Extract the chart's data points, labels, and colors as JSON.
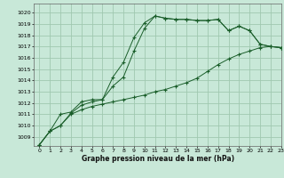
{
  "title": "Graphe pression niveau de la mer (hPa)",
  "background_color": "#c8e8d8",
  "grid_color": "#a0c8b0",
  "line_color": "#1a5e2a",
  "xlim": [
    -0.5,
    23
  ],
  "ylim": [
    1008.2,
    1020.8
  ],
  "yticks": [
    1009,
    1010,
    1011,
    1012,
    1013,
    1014,
    1015,
    1016,
    1017,
    1018,
    1019,
    1020
  ],
  "xticks": [
    0,
    1,
    2,
    3,
    4,
    5,
    6,
    7,
    8,
    9,
    10,
    11,
    12,
    13,
    14,
    15,
    16,
    17,
    18,
    19,
    20,
    21,
    22,
    23
  ],
  "series1_x": [
    0,
    1,
    2,
    3,
    4,
    5,
    6,
    7,
    8,
    9,
    10,
    11,
    12,
    13,
    14,
    15,
    16,
    17,
    18,
    19,
    20,
    21,
    22,
    23
  ],
  "series1_y": [
    1008.3,
    1009.5,
    1010.0,
    1011.1,
    1011.8,
    1012.1,
    1012.3,
    1013.5,
    1014.3,
    1016.6,
    1018.6,
    1019.7,
    1019.5,
    1019.4,
    1019.4,
    1019.3,
    1019.3,
    1019.4,
    1018.4,
    1018.8,
    1018.4,
    1017.2,
    1017.0,
    1016.9
  ],
  "series2_x": [
    0,
    1,
    2,
    3,
    4,
    5,
    6,
    7,
    8,
    9,
    10,
    11,
    12,
    13,
    14,
    15,
    16,
    17,
    18,
    19,
    20,
    21,
    22,
    23
  ],
  "series2_y": [
    1008.3,
    1009.5,
    1011.0,
    1011.2,
    1012.1,
    1012.3,
    1012.3,
    1014.3,
    1015.6,
    1017.8,
    1019.1,
    1019.7,
    1019.5,
    1019.4,
    1019.4,
    1019.3,
    1019.3,
    1019.4,
    1018.4,
    1018.8,
    1018.4,
    1017.2,
    1017.0,
    1016.9
  ],
  "series3_x": [
    0,
    1,
    2,
    3,
    4,
    5,
    6,
    7,
    8,
    9,
    10,
    11,
    12,
    13,
    14,
    15,
    16,
    17,
    18,
    19,
    20,
    21,
    22,
    23
  ],
  "series3_y": [
    1008.3,
    1009.5,
    1010.0,
    1011.0,
    1011.4,
    1011.7,
    1011.9,
    1012.1,
    1012.3,
    1012.5,
    1012.7,
    1013.0,
    1013.2,
    1013.5,
    1013.8,
    1014.2,
    1014.8,
    1015.4,
    1015.9,
    1016.3,
    1016.6,
    1016.9,
    1017.0,
    1016.9
  ]
}
